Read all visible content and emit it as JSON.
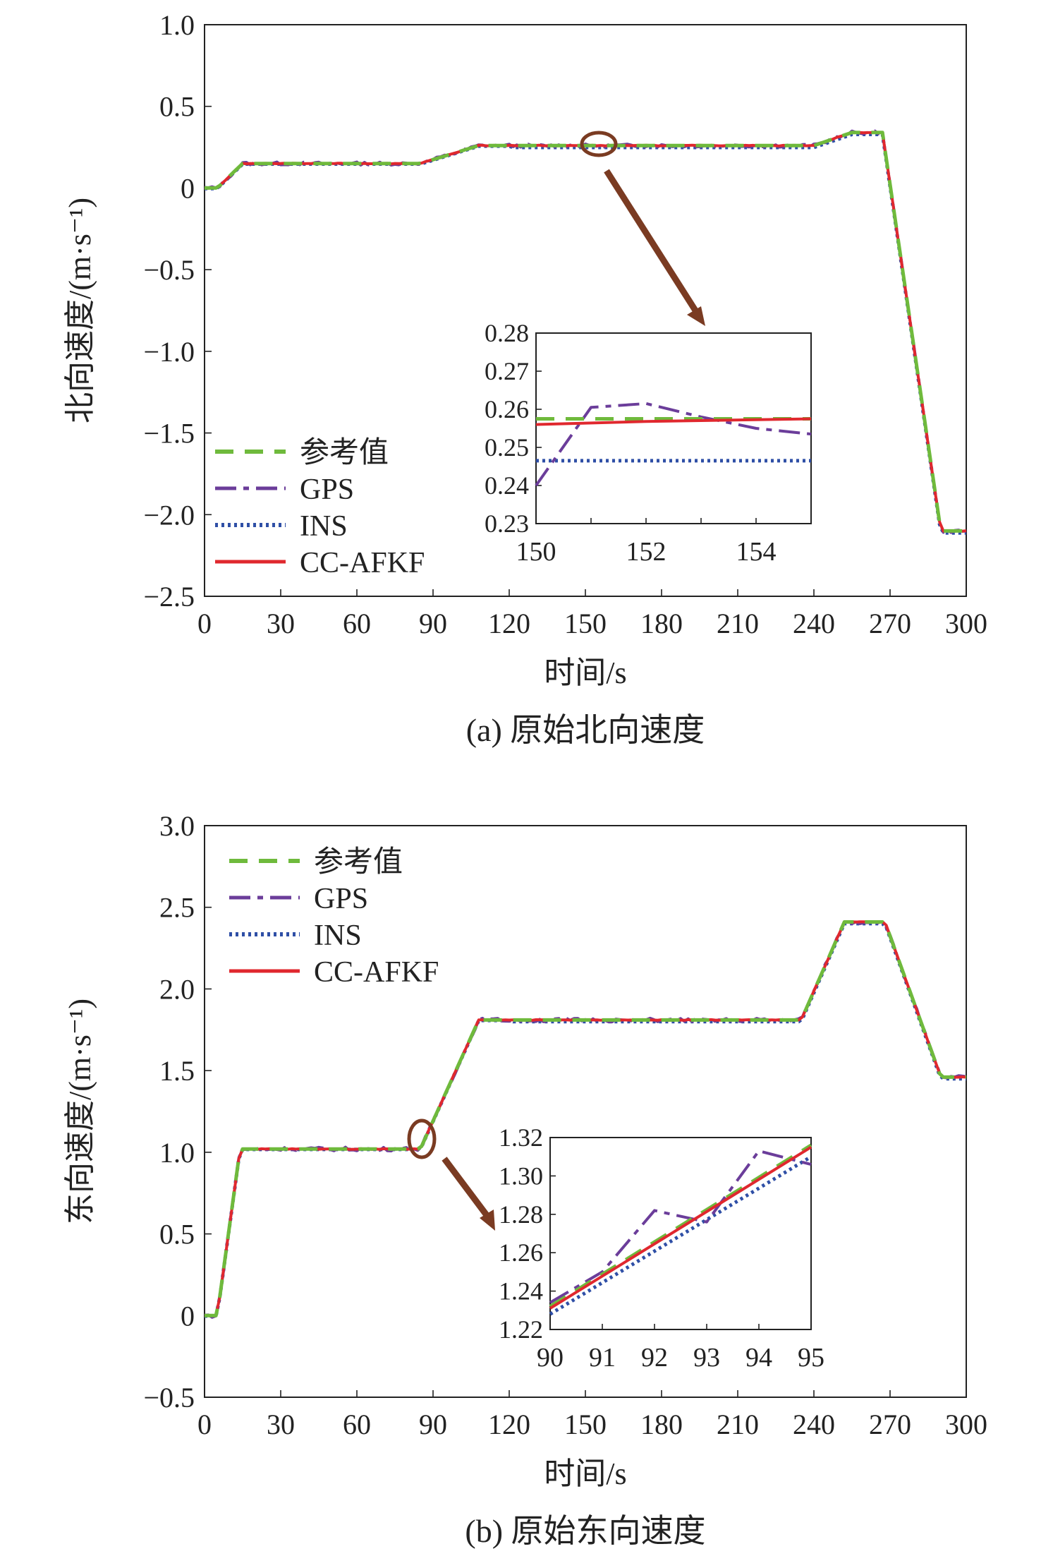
{
  "legend_order": [
    "参考值",
    "GPS",
    "INS",
    "CC-AFKF"
  ],
  "colors": {
    "参考值": "#6fba3c",
    "GPS": "#6b3d9a",
    "INS": "#2f4fa6",
    "CC-AFKF": "#e0282e",
    "annotation": "#7a3b22"
  },
  "chart_data": [
    {
      "type": "line",
      "caption": "(a) 原始北向速度",
      "xlabel": "时间/s",
      "ylabel": "北向速度/(m·s⁻¹)",
      "xlim": [
        0,
        300
      ],
      "ylim": [
        -2.5,
        1.0
      ],
      "xticks": [
        0,
        30,
        60,
        90,
        120,
        150,
        180,
        210,
        240,
        270,
        300
      ],
      "yticks": [
        1.0,
        0.5,
        0,
        -0.5,
        -1.0,
        -1.5,
        -2.0,
        -2.5
      ],
      "ytick_labels": [
        "1.0",
        "0.5",
        "0",
        "−0.5",
        "−1.0",
        "−1.5",
        "−2.0",
        "−2.5"
      ],
      "legend_position": "lower-left",
      "reference": {
        "x": [
          0,
          5,
          15,
          85,
          108,
          150,
          240,
          255,
          267,
          290,
          300
        ],
        "y": [
          0.0,
          0.0,
          0.15,
          0.15,
          0.26,
          0.26,
          0.26,
          0.34,
          0.34,
          -2.1,
          -2.1
        ]
      },
      "gps_noise": 0.01,
      "ins_offset": -0.012,
      "inset": {
        "xlim": [
          150,
          155
        ],
        "ylim": [
          0.23,
          0.28
        ],
        "xticks": [
          150,
          152,
          154
        ],
        "yticks": [
          0.28,
          0.27,
          0.26,
          0.25,
          0.24,
          0.23
        ],
        "ytick_labels": [
          "0.28",
          "0.27",
          "0.26",
          "0.25",
          "0.24",
          "0.23"
        ],
        "series": [
          {
            "name": "参考值",
            "x": [
              150,
              155
            ],
            "y": [
              0.2575,
              0.2575
            ]
          },
          {
            "name": "GPS",
            "x": [
              150,
              151,
              152,
              153,
              154,
              155
            ],
            "y": [
              0.24,
              0.2605,
              0.2615,
              0.258,
              0.255,
              0.2535
            ]
          },
          {
            "name": "INS",
            "x": [
              150,
              155
            ],
            "y": [
              0.2465,
              0.2465
            ]
          },
          {
            "name": "CC-AFKF",
            "x": [
              150,
              152,
              155
            ],
            "y": [
              0.256,
              0.2568,
              0.2575
            ]
          }
        ]
      }
    },
    {
      "type": "line",
      "caption": "(b) 原始东向速度",
      "xlabel": "时间/s",
      "ylabel": "东向速度/(m·s⁻¹)",
      "xlim": [
        0,
        300
      ],
      "ylim": [
        -0.5,
        3.0
      ],
      "xticks": [
        0,
        30,
        60,
        90,
        120,
        150,
        180,
        210,
        240,
        270,
        300
      ],
      "yticks": [
        3.0,
        2.5,
        2.0,
        1.5,
        1.0,
        0.5,
        0,
        -0.5
      ],
      "ytick_labels": [
        "3.0",
        "2.5",
        "2.0",
        "1.5",
        "1.0",
        "0.5",
        "0",
        "−0.5"
      ],
      "legend_position": "upper-left",
      "reference": {
        "x": [
          0,
          5,
          14,
          85,
          108,
          235,
          252,
          268,
          290,
          300
        ],
        "y": [
          0.0,
          0.0,
          1.02,
          1.02,
          1.81,
          1.81,
          2.41,
          2.41,
          1.46,
          1.46
        ]
      },
      "gps_noise": 0.012,
      "ins_offset": -0.01,
      "inset": {
        "xlim": [
          90,
          95
        ],
        "ylim": [
          1.22,
          1.32
        ],
        "xticks": [
          90,
          91,
          92,
          93,
          94,
          95
        ],
        "yticks": [
          1.32,
          1.3,
          1.28,
          1.26,
          1.24,
          1.22
        ],
        "ytick_labels": [
          "1.32",
          "1.30",
          "1.28",
          "1.26",
          "1.24",
          "1.22"
        ],
        "series": [
          {
            "name": "参考值",
            "x": [
              90,
              95
            ],
            "y": [
              1.232,
              1.316
            ]
          },
          {
            "name": "GPS",
            "x": [
              90,
              91,
              92,
              93,
              94,
              95
            ],
            "y": [
              1.234,
              1.25,
              1.282,
              1.276,
              1.313,
              1.306
            ]
          },
          {
            "name": "INS",
            "x": [
              90,
              95
            ],
            "y": [
              1.228,
              1.31
            ]
          },
          {
            "name": "CC-AFKF",
            "x": [
              90,
              95
            ],
            "y": [
              1.231,
              1.315
            ]
          }
        ]
      }
    }
  ]
}
